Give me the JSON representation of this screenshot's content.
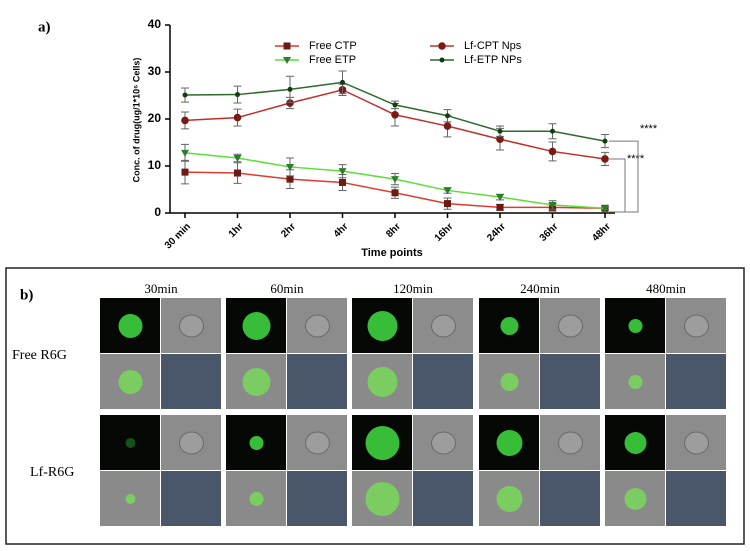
{
  "chart_data": {
    "type": "line",
    "panel_label": "a)",
    "x_label": "Time points",
    "y_label": "Conc. of drug(ug/1*10⁶ Cells)",
    "categories": [
      "30 min",
      "1hr",
      "2hr",
      "4hr",
      "8hr",
      "16hr",
      "24hr",
      "36hr",
      "48hr"
    ],
    "ylim": [
      0,
      40
    ],
    "yticks": [
      0,
      10,
      20,
      30,
      40
    ],
    "grid": false,
    "series": [
      {
        "name": "Free CTP",
        "color": "#e03a2f",
        "marker": "square",
        "values": [
          8.7,
          8.5,
          7.2,
          6.5,
          4.3,
          2.0,
          1.2,
          1.2,
          1.0
        ],
        "errors": [
          2.5,
          2.2,
          2.0,
          1.7,
          1.2,
          1.2,
          0.6,
          0.8,
          0.3
        ]
      },
      {
        "name": "Lf-CPT Nps",
        "color": "#c0302a",
        "marker": "circle",
        "values": [
          19.7,
          20.3,
          23.4,
          26.2,
          20.9,
          18.5,
          15.7,
          13.1,
          11.5
        ],
        "errors": [
          1.8,
          1.8,
          1.2,
          1.2,
          2.4,
          2.3,
          2.3,
          2.0,
          1.4
        ]
      },
      {
        "name": "Free ETP",
        "color": "#5fdd3a",
        "marker": "triangle",
        "values": [
          12.8,
          11.7,
          9.8,
          8.9,
          7.2,
          4.8,
          3.4,
          1.7,
          1.0
        ],
        "errors": [
          1.8,
          0.8,
          1.9,
          1.4,
          1.2,
          0.6,
          0.6,
          0.9,
          0.3
        ]
      },
      {
        "name": "Lf-ETP NPs",
        "color": "#2d6a2d",
        "marker": "dot",
        "values": [
          25.1,
          25.2,
          26.3,
          27.8,
          23.0,
          20.7,
          17.4,
          17.4,
          15.3
        ],
        "errors": [
          1.5,
          1.8,
          2.8,
          2.4,
          0.8,
          1.3,
          1.1,
          1.6,
          1.4
        ]
      }
    ],
    "annotations": [
      "****",
      "****"
    ]
  },
  "panel_b": {
    "label": "b)",
    "columns": [
      "30min",
      "60min",
      "120min",
      "240min",
      "480min"
    ],
    "rows": [
      "Free R6G",
      "Lf-R6G"
    ]
  }
}
